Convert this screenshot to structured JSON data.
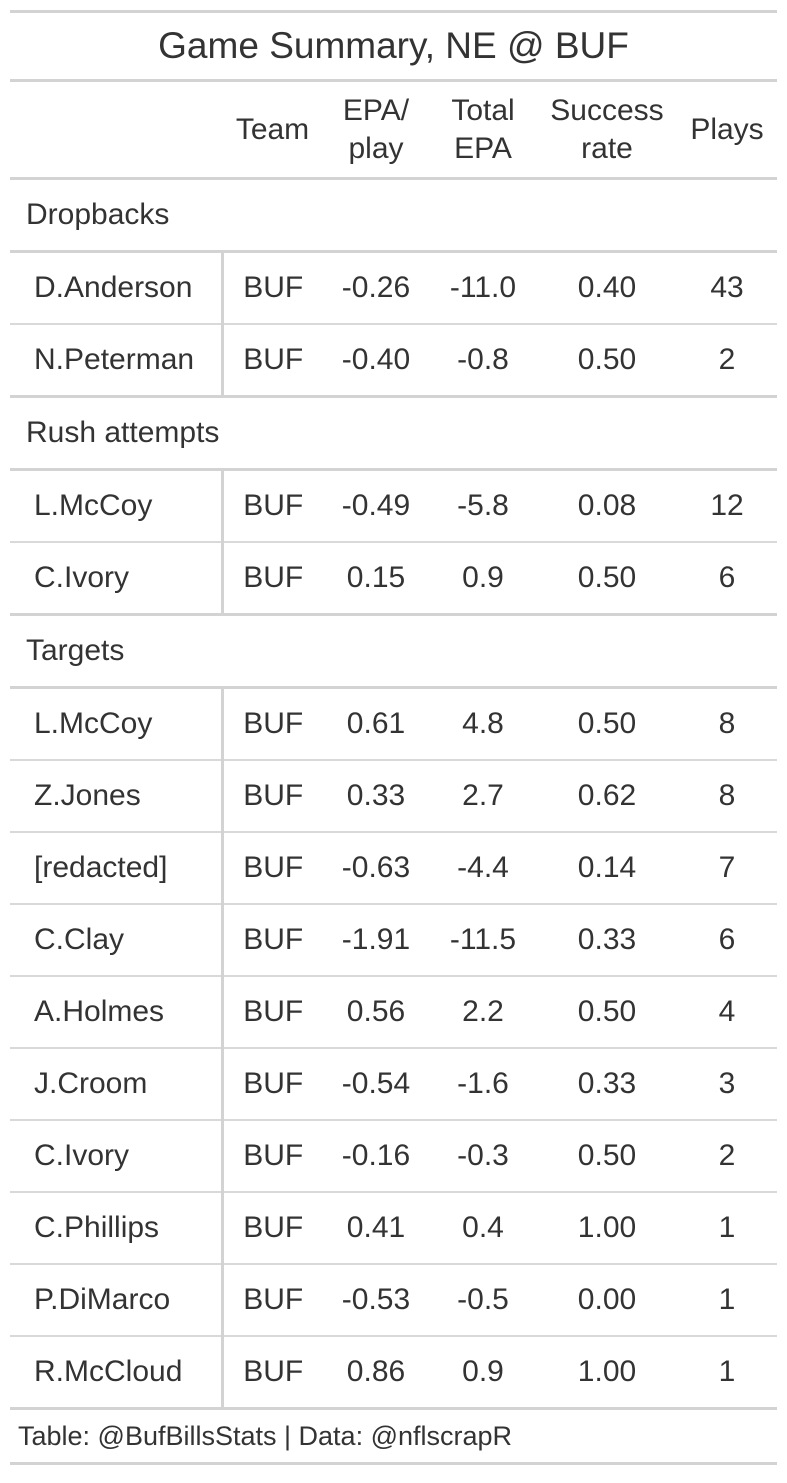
{
  "chart_data": {
    "type": "table",
    "title": "Game Summary, NE @ BUF",
    "columns": [
      "",
      "Team",
      "EPA/ play",
      "Total EPA",
      "Success rate",
      "Plays"
    ],
    "groups": [
      {
        "label": "Dropbacks",
        "rows": [
          {
            "name": "D.Anderson",
            "team": "BUF",
            "epa_play": "-0.26",
            "total_epa": "-11.0",
            "success_rate": "0.40",
            "plays": "43"
          },
          {
            "name": "N.Peterman",
            "team": "BUF",
            "epa_play": "-0.40",
            "total_epa": "-0.8",
            "success_rate": "0.50",
            "plays": "2"
          }
        ]
      },
      {
        "label": "Rush attempts",
        "rows": [
          {
            "name": "L.McCoy",
            "team": "BUF",
            "epa_play": "-0.49",
            "total_epa": "-5.8",
            "success_rate": "0.08",
            "plays": "12"
          },
          {
            "name": "C.Ivory",
            "team": "BUF",
            "epa_play": "0.15",
            "total_epa": "0.9",
            "success_rate": "0.50",
            "plays": "6"
          }
        ]
      },
      {
        "label": "Targets",
        "rows": [
          {
            "name": "L.McCoy",
            "team": "BUF",
            "epa_play": "0.61",
            "total_epa": "4.8",
            "success_rate": "0.50",
            "plays": "8"
          },
          {
            "name": "Z.Jones",
            "team": "BUF",
            "epa_play": "0.33",
            "total_epa": "2.7",
            "success_rate": "0.62",
            "plays": "8"
          },
          {
            "name": "[redacted]",
            "team": "BUF",
            "epa_play": "-0.63",
            "total_epa": "-4.4",
            "success_rate": "0.14",
            "plays": "7"
          },
          {
            "name": "C.Clay",
            "team": "BUF",
            "epa_play": "-1.91",
            "total_epa": "-11.5",
            "success_rate": "0.33",
            "plays": "6"
          },
          {
            "name": "A.Holmes",
            "team": "BUF",
            "epa_play": "0.56",
            "total_epa": "2.2",
            "success_rate": "0.50",
            "plays": "4"
          },
          {
            "name": "J.Croom",
            "team": "BUF",
            "epa_play": "-0.54",
            "total_epa": "-1.6",
            "success_rate": "0.33",
            "plays": "3"
          },
          {
            "name": "C.Ivory",
            "team": "BUF",
            "epa_play": "-0.16",
            "total_epa": "-0.3",
            "success_rate": "0.50",
            "plays": "2"
          },
          {
            "name": "C.Phillips",
            "team": "BUF",
            "epa_play": "0.41",
            "total_epa": "0.4",
            "success_rate": "1.00",
            "plays": "1"
          },
          {
            "name": "P.DiMarco",
            "team": "BUF",
            "epa_play": "-0.53",
            "total_epa": "-0.5",
            "success_rate": "0.00",
            "plays": "1"
          },
          {
            "name": "R.McCloud",
            "team": "BUF",
            "epa_play": "0.86",
            "total_epa": "0.9",
            "success_rate": "1.00",
            "plays": "1"
          }
        ]
      }
    ],
    "footer": "Table: @BufBillsStats | Data: @nflscrapR"
  },
  "header": {
    "team": "Team",
    "epa_play_1": "EPA/",
    "epa_play_2": "play",
    "total_epa_1": "Total",
    "total_epa_2": "EPA",
    "success_rate_1": "Success",
    "success_rate_2": "rate",
    "plays": "Plays"
  },
  "colors": {
    "text": "#333333",
    "rule": "#d3d3d3"
  }
}
